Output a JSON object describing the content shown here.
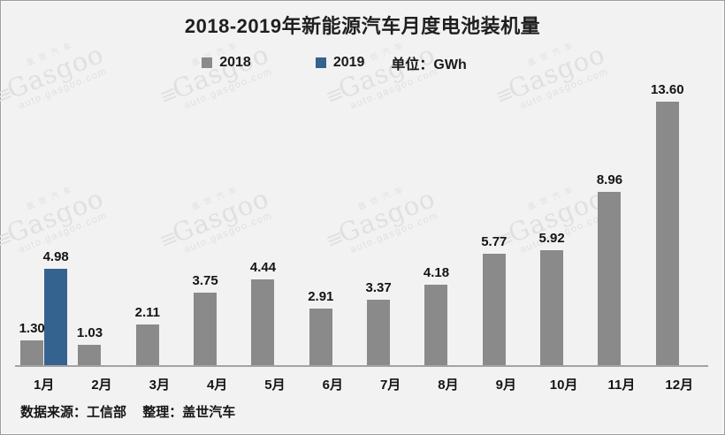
{
  "title": "2018-2019年新能源汽车月度电池装机量",
  "legend": {
    "items": [
      {
        "label": "2018",
        "color": "#8a8a8a"
      },
      {
        "label": "2019",
        "color": "#34638f"
      }
    ],
    "unit_label": "单位：GWh"
  },
  "chart_data": {
    "type": "bar",
    "title": "2018-2019年新能源汽车月度电池装机量",
    "categories": [
      "1月",
      "2月",
      "3月",
      "4月",
      "5月",
      "6月",
      "7月",
      "8月",
      "9月",
      "10月",
      "11月",
      "12月"
    ],
    "series": [
      {
        "name": "2018",
        "color": "#8a8a8a",
        "values": [
          1.3,
          1.03,
          2.11,
          3.75,
          4.44,
          2.91,
          3.37,
          4.18,
          5.77,
          5.92,
          8.96,
          13.6
        ]
      },
      {
        "name": "2019",
        "color": "#34638f",
        "values": [
          4.98,
          null,
          null,
          null,
          null,
          null,
          null,
          null,
          null,
          null,
          null,
          null
        ]
      }
    ],
    "xlabel": "",
    "ylabel": "GWh",
    "unit": "单位：GWh",
    "ylim": [
      0,
      14
    ],
    "grid": false,
    "legend_position": "top",
    "value_labels": true,
    "value_label_format": "0.00"
  },
  "footer": {
    "source": "数据来源：工信部",
    "editor": "整理：盖世汽车"
  },
  "watermark": {
    "brand_cn": "盖世汽车",
    "brand": "Gasgoo",
    "url": "auto.gasgoo.com"
  },
  "colors": {
    "background": "#f2f2f2",
    "bar_2018": "#8a8a8a",
    "bar_2019": "#34638f",
    "axis": "#a3a3a3",
    "text": "#141414",
    "watermark": "#e2dfdf"
  }
}
